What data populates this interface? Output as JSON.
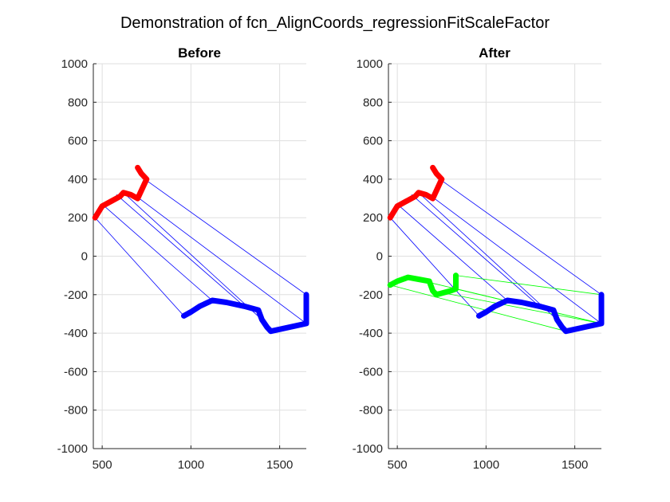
{
  "figure": {
    "title": "Demonstration of fcn_AlignCoords_regressionFitScaleFactor"
  },
  "colors": {
    "red_path": "#ff0000",
    "blue_path": "#0000ff",
    "green_path": "#00ff00",
    "blue_connector": "#0000ff",
    "green_connector": "#00ff00",
    "grid": "#dfdfdf",
    "axis": "#262626"
  },
  "chart_data": [
    {
      "type": "line",
      "title": "Before",
      "xlabel": "",
      "ylabel": "",
      "xlim": [
        450,
        1650
      ],
      "ylim": [
        -1000,
        1000
      ],
      "xticks": [
        500,
        1000,
        1500
      ],
      "yticks": [
        -1000,
        -800,
        -600,
        -400,
        -200,
        0,
        200,
        400,
        600,
        800,
        1000
      ],
      "grid": true,
      "series": [
        {
          "role": "path",
          "color_key": "red_path",
          "x": [
            460,
            500,
            600,
            620,
            660,
            700,
            720,
            750,
            720,
            700
          ],
          "y": [
            200,
            260,
            310,
            330,
            320,
            300,
            340,
            400,
            430,
            460
          ]
        },
        {
          "role": "path",
          "color_key": "blue_path",
          "x": [
            960,
            1000,
            1050,
            1120,
            1200,
            1300,
            1380,
            1400,
            1430,
            1450,
            1650,
            1650
          ],
          "y": [
            -310,
            -290,
            -260,
            -230,
            -240,
            -260,
            -280,
            -330,
            -370,
            -390,
            -350,
            -200
          ]
        }
      ],
      "connectors": {
        "color_key": "blue_connector",
        "from_x": [
          460,
          500,
          580,
          620,
          680,
          740
        ],
        "from_y": [
          200,
          270,
          320,
          330,
          320,
          400
        ],
        "to_x": [
          960,
          1120,
          1300,
          1400,
          1650,
          1650
        ],
        "to_y": [
          -310,
          -230,
          -260,
          -330,
          -350,
          -200
        ]
      }
    },
    {
      "type": "line",
      "title": "After",
      "xlabel": "",
      "ylabel": "",
      "xlim": [
        450,
        1650
      ],
      "ylim": [
        -1000,
        1000
      ],
      "xticks": [
        500,
        1000,
        1500
      ],
      "yticks": [
        -1000,
        -800,
        -600,
        -400,
        -200,
        0,
        200,
        400,
        600,
        800,
        1000
      ],
      "grid": true,
      "series": [
        {
          "role": "path",
          "color_key": "red_path",
          "x": [
            460,
            500,
            600,
            620,
            660,
            700,
            720,
            750,
            720,
            700
          ],
          "y": [
            200,
            260,
            310,
            330,
            320,
            300,
            340,
            400,
            430,
            460
          ]
        },
        {
          "role": "path",
          "color_key": "blue_path",
          "x": [
            960,
            1000,
            1050,
            1120,
            1200,
            1300,
            1380,
            1400,
            1430,
            1450,
            1650,
            1650
          ],
          "y": [
            -310,
            -290,
            -260,
            -230,
            -240,
            -260,
            -280,
            -330,
            -370,
            -390,
            -350,
            -200
          ]
        },
        {
          "role": "path",
          "color_key": "green_path",
          "x": [
            460,
            500,
            560,
            620,
            680,
            700,
            720,
            760,
            800,
            830,
            830
          ],
          "y": [
            -150,
            -130,
            -110,
            -120,
            -130,
            -180,
            -200,
            -190,
            -180,
            -170,
            -100
          ]
        }
      ],
      "connectors": {
        "color_key": "blue_connector",
        "from_x": [
          460,
          500,
          580,
          620,
          680,
          740
        ],
        "from_y": [
          200,
          270,
          320,
          330,
          320,
          400
        ],
        "to_x": [
          960,
          1120,
          1300,
          1400,
          1650,
          1650
        ],
        "to_y": [
          -310,
          -230,
          -260,
          -330,
          -350,
          -200
        ]
      },
      "green_connectors": {
        "color_key": "green_connector",
        "from_x": [
          460,
          560,
          700,
          830,
          830
        ],
        "from_y": [
          -150,
          -110,
          -180,
          -170,
          -100
        ],
        "to_x": [
          1450,
          1650,
          1650,
          1650,
          1650
        ],
        "to_y": [
          -390,
          -350,
          -350,
          -350,
          -200
        ]
      }
    }
  ]
}
